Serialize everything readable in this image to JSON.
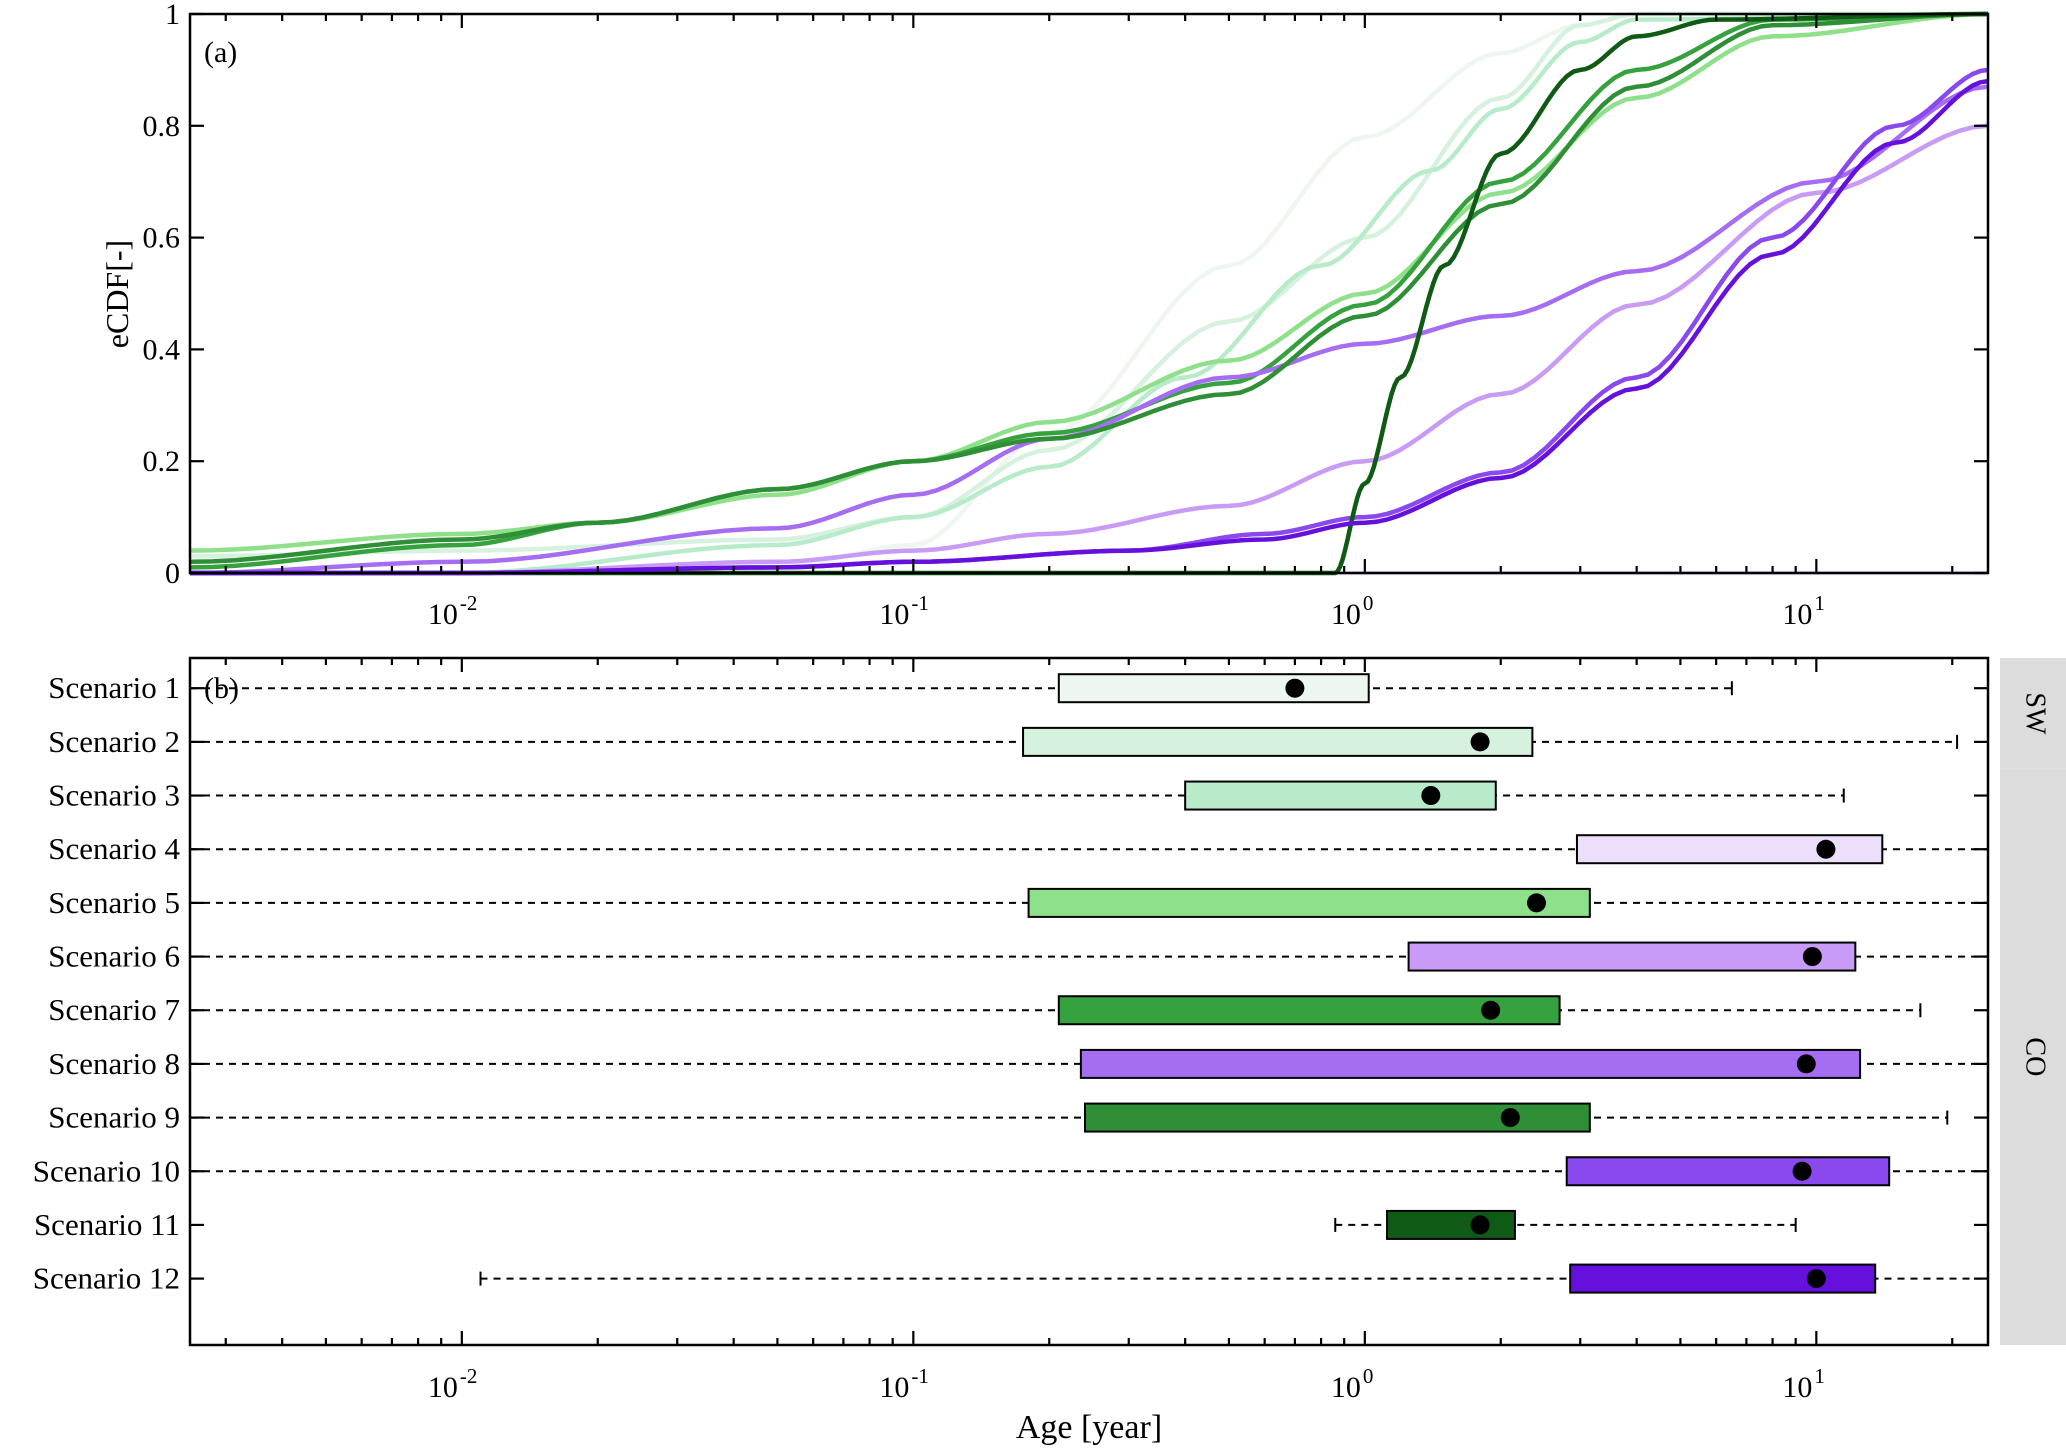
{
  "chart_data": [
    {
      "panel": "a",
      "type": "line",
      "panel_label": "(a)",
      "ylabel": "eCDF[-]",
      "xscale": "log",
      "xlim": [
        0.0025,
        24
      ],
      "ylim": [
        0,
        1
      ],
      "xticks": [
        0.01,
        0.1,
        1,
        10
      ],
      "xtick_labels": [
        {
          "base": "10",
          "exp": "-2"
        },
        {
          "base": "10",
          "exp": "-1"
        },
        {
          "base": "10",
          "exp": "0"
        },
        {
          "base": "10",
          "exp": "1"
        }
      ],
      "yticks": [
        0,
        0.2,
        0.4,
        0.6,
        0.8,
        1
      ],
      "ytick_labels": [
        "0",
        "0.2",
        "0.4",
        "0.6",
        "0.8",
        "1"
      ],
      "series": [
        {
          "color": "#eef7ef",
          "x": [
            0.0025,
            0.01,
            0.05,
            0.1,
            0.2,
            0.5,
            1,
            2,
            3,
            4,
            5,
            24
          ],
          "y": [
            0.0,
            0.0,
            0.01,
            0.05,
            0.25,
            0.55,
            0.78,
            0.93,
            0.98,
            1.0,
            1.0,
            1.0
          ]
        },
        {
          "color": "#d6f2de",
          "x": [
            0.0025,
            0.01,
            0.05,
            0.1,
            0.2,
            0.5,
            1,
            2,
            3,
            4,
            24
          ],
          "y": [
            0.03,
            0.04,
            0.06,
            0.1,
            0.22,
            0.45,
            0.6,
            0.85,
            0.98,
            1.0,
            1.0
          ]
        },
        {
          "color": "#b8ebca",
          "x": [
            0.0025,
            0.01,
            0.05,
            0.1,
            0.2,
            0.4,
            0.8,
            1.4,
            2,
            3,
            4,
            24
          ],
          "y": [
            0.0,
            0.0,
            0.05,
            0.1,
            0.19,
            0.35,
            0.55,
            0.72,
            0.83,
            0.95,
            0.99,
            1.0
          ]
        },
        {
          "color": "#ecdffc",
          "x": [
            0.0025,
            0.01,
            0.05,
            0.1,
            0.3,
            0.5,
            1,
            2,
            4,
            10,
            24
          ],
          "y": [
            0.0,
            0.0,
            0.0,
            0.0,
            0.0,
            0.0,
            0.0,
            0.0,
            0.0,
            0.0,
            0.0
          ]
        },
        {
          "color": "#8fe08a",
          "x": [
            0.0025,
            0.01,
            0.02,
            0.05,
            0.1,
            0.2,
            0.5,
            1,
            2,
            4,
            8,
            24
          ],
          "y": [
            0.04,
            0.07,
            0.09,
            0.14,
            0.2,
            0.27,
            0.38,
            0.5,
            0.68,
            0.85,
            0.96,
            1.0
          ]
        },
        {
          "color": "#c89bf6",
          "x": [
            0.0025,
            0.01,
            0.05,
            0.1,
            0.2,
            0.5,
            1,
            2,
            4,
            10,
            24
          ],
          "y": [
            0.0,
            0.0,
            0.02,
            0.04,
            0.07,
            0.12,
            0.2,
            0.32,
            0.48,
            0.68,
            0.8
          ]
        },
        {
          "color": "#36a23d",
          "x": [
            0.0025,
            0.01,
            0.02,
            0.05,
            0.1,
            0.2,
            0.5,
            1,
            2,
            4,
            8,
            24
          ],
          "y": [
            0.01,
            0.05,
            0.09,
            0.15,
            0.2,
            0.25,
            0.34,
            0.48,
            0.7,
            0.9,
            0.99,
            1.0
          ]
        },
        {
          "color": "#a56df2",
          "x": [
            0.0025,
            0.01,
            0.05,
            0.1,
            0.2,
            0.5,
            1,
            2,
            4,
            10,
            24
          ],
          "y": [
            0.0,
            0.02,
            0.08,
            0.14,
            0.24,
            0.35,
            0.41,
            0.46,
            0.54,
            0.7,
            0.87
          ]
        },
        {
          "color": "#2f8f36",
          "x": [
            0.0025,
            0.01,
            0.02,
            0.05,
            0.1,
            0.2,
            0.5,
            1,
            2,
            4,
            8,
            24
          ],
          "y": [
            0.02,
            0.06,
            0.09,
            0.15,
            0.2,
            0.24,
            0.32,
            0.46,
            0.66,
            0.87,
            0.98,
            1.0
          ]
        },
        {
          "color": "#8a48ef",
          "x": [
            0.0025,
            0.01,
            0.05,
            0.1,
            0.3,
            0.6,
            1,
            2,
            4,
            8,
            15,
            24
          ],
          "y": [
            0.0,
            0.0,
            0.01,
            0.02,
            0.04,
            0.07,
            0.1,
            0.18,
            0.35,
            0.6,
            0.8,
            0.9
          ]
        },
        {
          "color": "#0f5a15",
          "x": [
            0.0025,
            0.1,
            0.5,
            0.86,
            1.0,
            1.2,
            1.5,
            2,
            3,
            4,
            6,
            24
          ],
          "y": [
            0.0,
            0.0,
            0.0,
            0.0,
            0.16,
            0.35,
            0.55,
            0.75,
            0.9,
            0.96,
            0.99,
            1.0
          ]
        },
        {
          "color": "#6610dd",
          "x": [
            0.0025,
            0.01,
            0.05,
            0.1,
            0.3,
            0.6,
            1,
            2,
            4,
            8,
            15,
            24
          ],
          "y": [
            0.0,
            0.0,
            0.01,
            0.02,
            0.04,
            0.06,
            0.09,
            0.17,
            0.33,
            0.57,
            0.77,
            0.88
          ]
        }
      ]
    },
    {
      "panel": "b",
      "type": "boxplot",
      "panel_label": "(b)",
      "xlabel": "Age [year]",
      "xscale": "log",
      "xlim": [
        0.0025,
        24
      ],
      "xticks": [
        0.01,
        0.1,
        1,
        10
      ],
      "xtick_labels": [
        {
          "base": "10",
          "exp": "-2"
        },
        {
          "base": "10",
          "exp": "-1"
        },
        {
          "base": "10",
          "exp": "0"
        },
        {
          "base": "10",
          "exp": "1"
        }
      ],
      "categories": [
        "Scenario 1",
        "Scenario 2",
        "Scenario 3",
        "Scenario 4",
        "Scenario 5",
        "Scenario 6",
        "Scenario 7",
        "Scenario 8",
        "Scenario 9",
        "Scenario 10",
        "Scenario 11",
        "Scenario 12"
      ],
      "boxes": [
        {
          "q1": 0.21,
          "q3": 1.02,
          "median": 0.7,
          "whisker_high": 6.5,
          "color": "#eef7ef"
        },
        {
          "q1": 0.175,
          "q3": 2.35,
          "median": 1.8,
          "whisker_high": 20.5,
          "color": "#d6f2de"
        },
        {
          "q1": 0.4,
          "q3": 1.95,
          "median": 1.4,
          "whisker_high": 11.5,
          "color": "#b8ebca"
        },
        {
          "q1": 2.95,
          "q3": 14.0,
          "median": 10.5,
          "color": "#ecdffc"
        },
        {
          "q1": 0.18,
          "q3": 3.15,
          "median": 2.4,
          "color": "#8fe08a"
        },
        {
          "q1": 1.25,
          "q3": 12.2,
          "median": 9.8,
          "color": "#c89bf6"
        },
        {
          "q1": 0.21,
          "q3": 2.7,
          "median": 1.9,
          "whisker_high": 17.0,
          "color": "#36a23d"
        },
        {
          "q1": 0.235,
          "q3": 12.5,
          "median": 9.5,
          "color": "#a56df2"
        },
        {
          "q1": 0.24,
          "q3": 3.15,
          "median": 2.1,
          "whisker_high": 19.5,
          "color": "#2f8f36"
        },
        {
          "q1": 2.8,
          "q3": 14.5,
          "median": 9.3,
          "color": "#8a48ef"
        },
        {
          "q1": 1.12,
          "q3": 2.15,
          "median": 1.8,
          "whisker_low": 0.86,
          "whisker_high": 9.0,
          "color": "#0f5a15"
        },
        {
          "q1": 2.85,
          "q3": 13.5,
          "median": 10.0,
          "whisker_low": 0.011,
          "color": "#6610dd"
        }
      ],
      "side_strips": [
        {
          "label": "SW",
          "from": 0,
          "to": 1
        },
        {
          "label": "CO",
          "from": 2,
          "to": 11
        }
      ],
      "strip_color": "#dcdcdc"
    }
  ]
}
